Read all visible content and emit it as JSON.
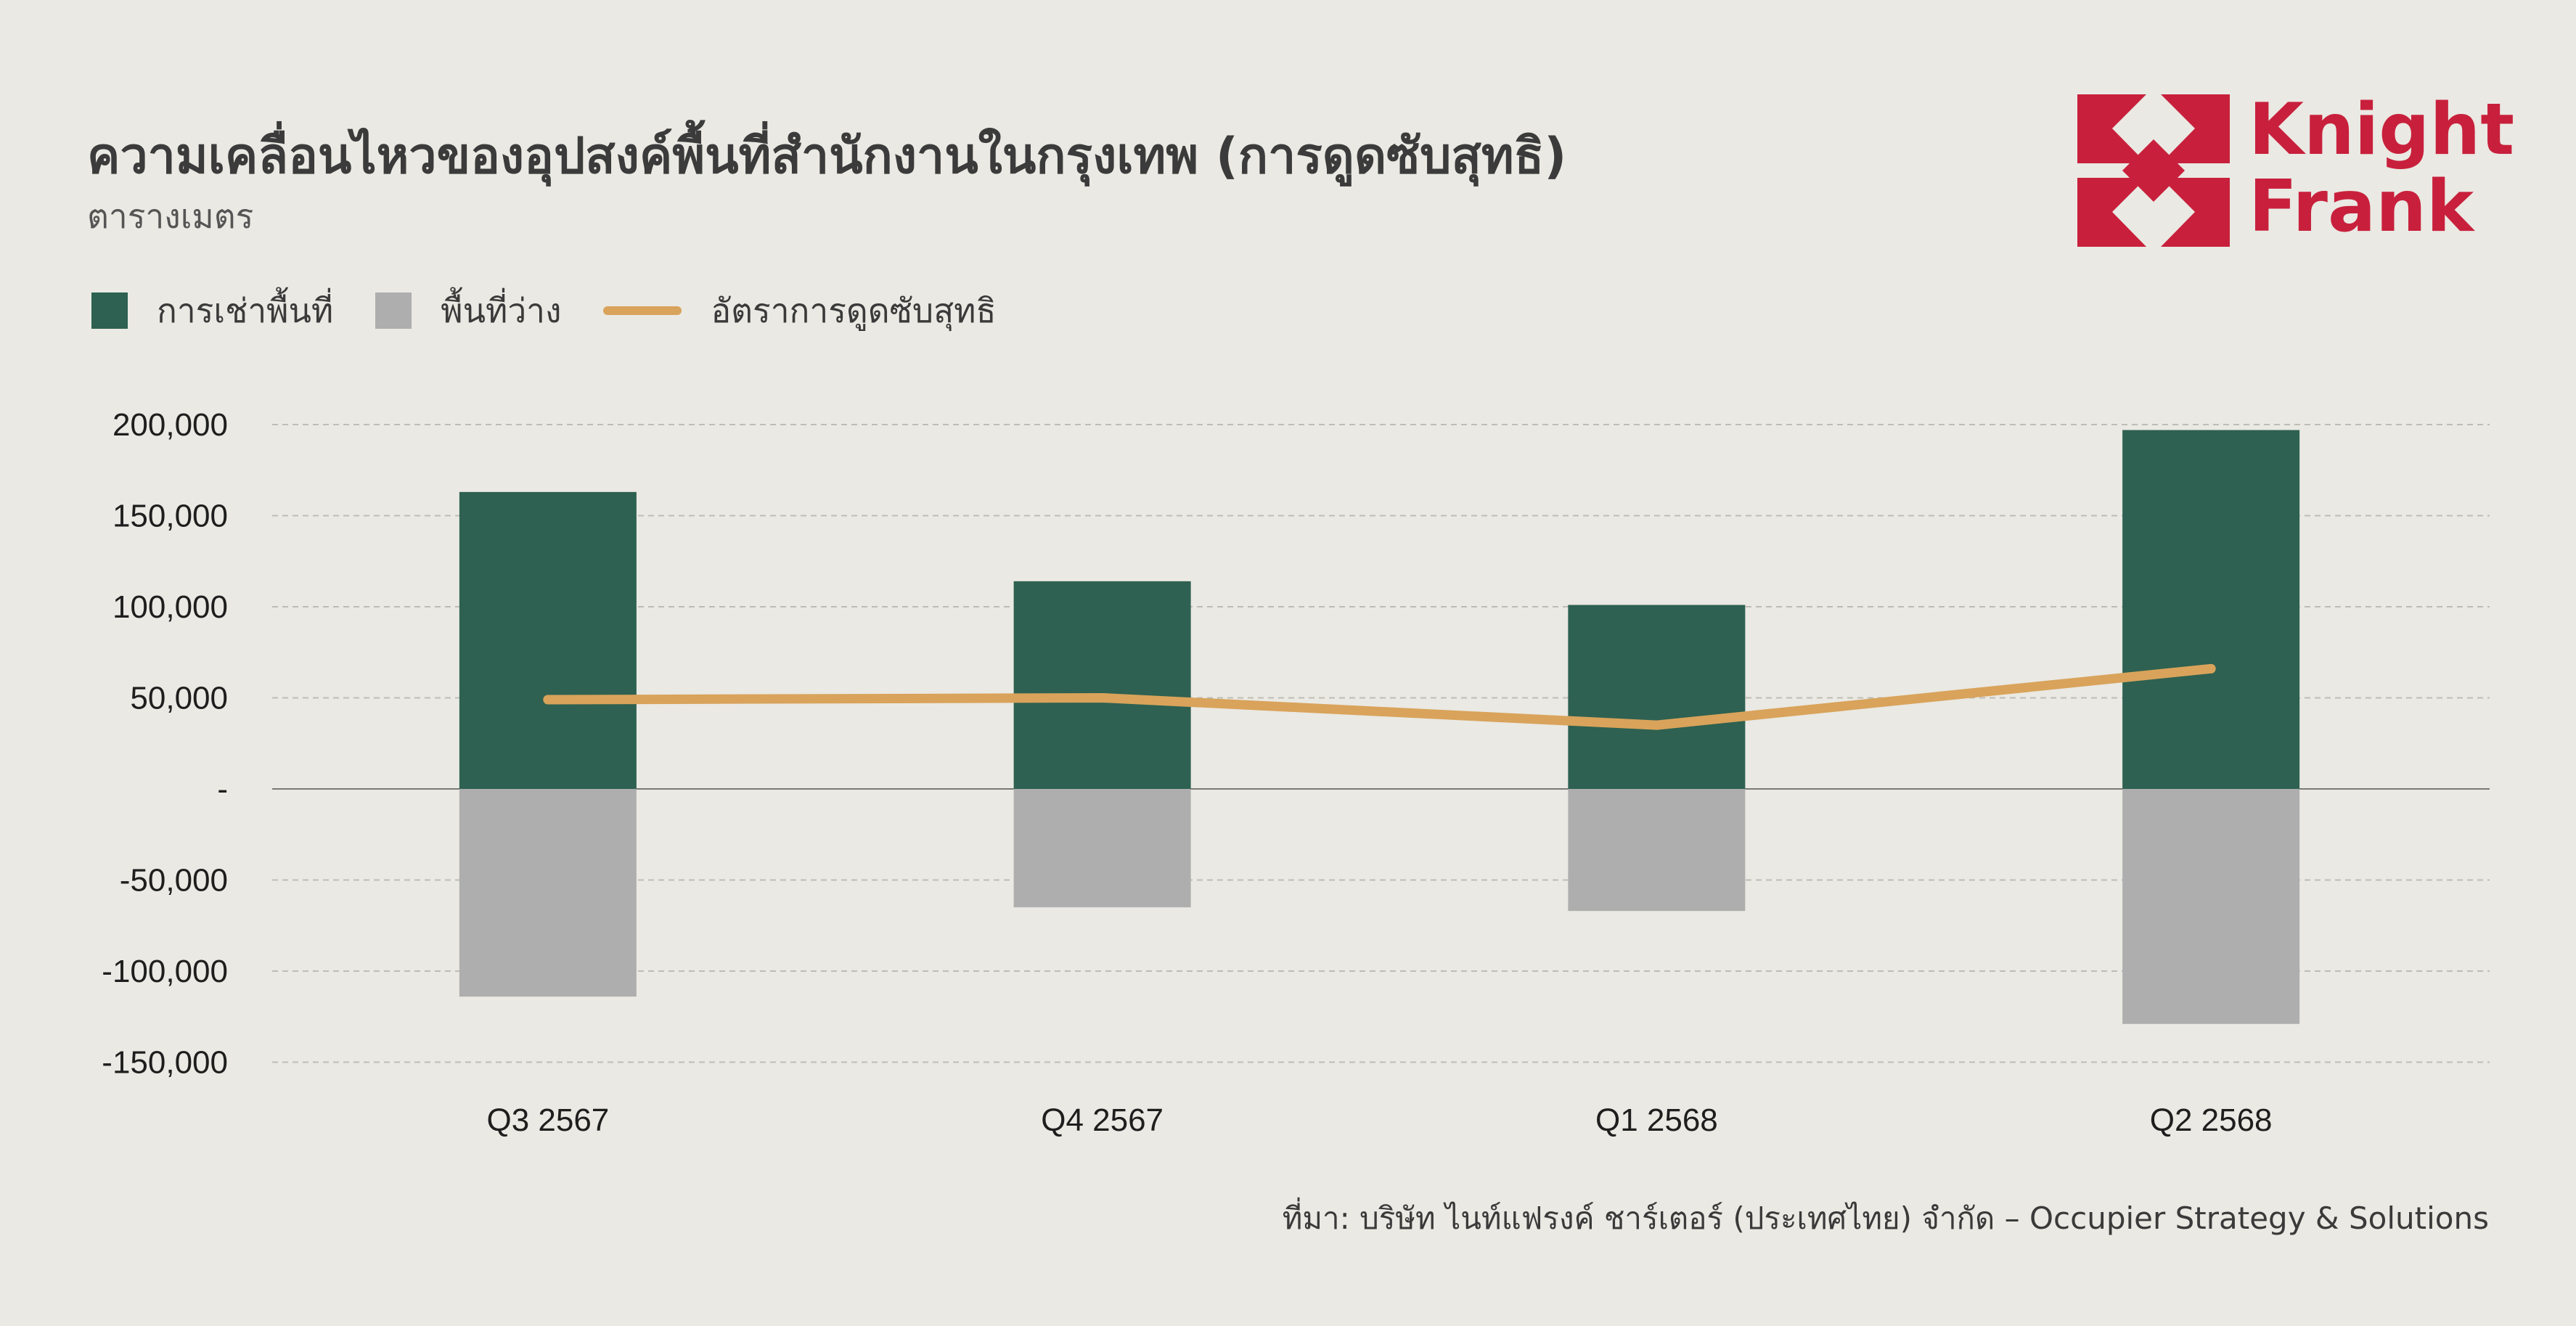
{
  "header": {
    "title": "ความเคลื่อนไหวของอุปสงค์พื้นที่สำนักงานในกรุงเทพ (การดูดซับสุทธิ)",
    "subtitle": "ตารางเมตร"
  },
  "logo": {
    "line1": "Knight",
    "line2": "Frank"
  },
  "source": "ที่มา: บริษัท ไนท์แฟรงค์ ชาร์เตอร์ (ประเทศไทย) จำกัด – Occupier Strategy & Solutions",
  "colors": {
    "leasing": "#2E6151",
    "vacant": "#AEAEAE",
    "net_absorption": "#D9A35B",
    "brand": "#C8203C"
  },
  "chart_data": {
    "type": "bar",
    "categories": [
      "Q3 2567",
      "Q4 2567",
      "Q1 2568",
      "Q2 2568"
    ],
    "series": [
      {
        "name": "การเช่าพื้นที่",
        "type": "bar",
        "values": [
          163000,
          114000,
          101000,
          197000
        ]
      },
      {
        "name": "พื้นที่ว่าง",
        "type": "bar",
        "values": [
          -114000,
          -65000,
          -67000,
          -129000
        ]
      },
      {
        "name": "อัตราการดูดซับสุทธิ",
        "type": "line",
        "values": [
          49000,
          50000,
          35000,
          66000
        ]
      }
    ],
    "ylim": [
      -150000,
      200000
    ],
    "yticks": [
      200000,
      150000,
      100000,
      50000,
      0,
      -50000,
      -100000,
      -150000
    ],
    "ytick_labels": [
      "200,000",
      "150,000",
      "100,000",
      "50,000",
      "-",
      "-50,000",
      "-100,000",
      "-150,000"
    ],
    "grid": true,
    "legend_position": "top-left",
    "xlabel": "",
    "ylabel": ""
  }
}
